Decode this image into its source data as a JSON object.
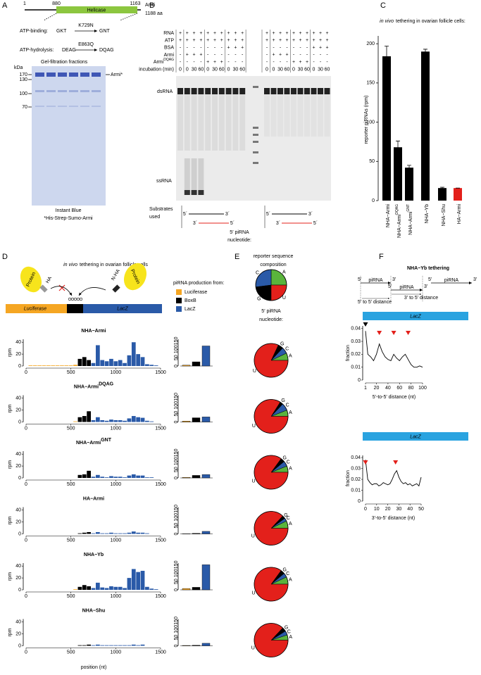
{
  "panel_a": {
    "label": "A",
    "start": "1",
    "helicase_start": "880",
    "helicase_end": "1163",
    "domain": "Helicase",
    "protein": "Armi",
    "length": "1188 aa",
    "mutations": [
      {
        "site": "ATP-binding:",
        "wt": "GKT",
        "change": "K729N",
        "mut": "GNT"
      },
      {
        "site": "ATP-hydrolysis:",
        "wt": "DEAG",
        "change": "E863Q",
        "mut": "DQAG"
      }
    ],
    "gel_title": "Gel-filtration fractions",
    "kda": "kDa",
    "markers": [
      "170",
      "130",
      "100",
      "70"
    ],
    "band": "Armi*",
    "stain": "Instant Blue",
    "construct": "*His-Strep-Sumo-Armi"
  },
  "panel_b": {
    "label": "B",
    "rows": [
      {
        "name": "RNA",
        "left": [
          "+",
          "+",
          "+",
          "+",
          "+",
          "+",
          "+",
          "+",
          "+",
          "+"
        ],
        "right": [
          "+",
          "+",
          "+",
          "+",
          "+",
          "+",
          "+",
          "+",
          "+",
          "+"
        ]
      },
      {
        "name": "ATP",
        "left": [
          "+",
          "+",
          "+",
          "+",
          "+",
          "+",
          "+",
          "+",
          "+",
          "+"
        ],
        "right": [
          "+",
          "+",
          "+",
          "+",
          "+",
          "+",
          "+",
          "+",
          "+",
          "+"
        ]
      },
      {
        "name": "BSA",
        "left": [
          "-",
          "-",
          "-",
          "-",
          "-",
          "-",
          "-",
          "+",
          "+",
          "+"
        ],
        "right": [
          "-",
          "-",
          "-",
          "-",
          "-",
          "-",
          "-",
          "+",
          "+",
          "+"
        ]
      },
      {
        "name": "Armi",
        "left": [
          "-",
          "+",
          "+",
          "+",
          "-",
          "-",
          "-",
          "-",
          "-",
          "-"
        ],
        "right": [
          "-",
          "+",
          "+",
          "+",
          "-",
          "-",
          "-",
          "-",
          "-",
          "-"
        ]
      },
      {
        "name": "Armi",
        "sup": "DQAG",
        "left": [
          "-",
          "-",
          "-",
          "-",
          "+",
          "+",
          "+",
          "-",
          "-",
          "-"
        ],
        "right": [
          "-",
          "-",
          "-",
          "-",
          "+",
          "+",
          "+",
          "-",
          "-",
          "-"
        ]
      },
      {
        "name": "incubation (min)",
        "left": [
          "0",
          "0",
          "30",
          "60",
          "0",
          "30",
          "60",
          "0",
          "30",
          "60"
        ],
        "right": [
          "0",
          "0",
          "30",
          "60",
          "0",
          "30",
          "60",
          "0",
          "30",
          "60"
        ]
      }
    ],
    "dsrna": "dsRNA",
    "ssrna": "ssRNA",
    "substrates": [
      "Substrates",
      "used"
    ],
    "end5": "5´",
    "end3": "3´",
    "nucleotide": [
      "5′ piRNA",
      "nucleotide:"
    ]
  },
  "panel_c": {
    "label": "C",
    "title_italic": "in vivo",
    "title": "tethering in ovarian follicle cells:",
    "ylabel": "reporter piRNAs (rpm)",
    "ylim": [
      0,
      210
    ],
    "yticks": [
      0,
      50,
      100,
      150,
      200
    ],
    "bars": [
      {
        "name": "NHA−Armi",
        "value": 184,
        "error": 13,
        "color": "#000000"
      },
      {
        "name": "NHA−Armi",
        "sup": "DQAG",
        "value": 68,
        "error": 8,
        "color": "#000000"
      },
      {
        "name": "NHA−Armi",
        "sup": "GNT",
        "value": 42,
        "error": 3,
        "color": "#000000"
      },
      {
        "name": "NHA−Yb",
        "value": 190,
        "error": 3,
        "color": "#000000"
      },
      {
        "name": "NHA−Shu",
        "value": 16,
        "error": 1,
        "color": "#000000"
      },
      {
        "name": "HA−Armi",
        "value": 16,
        "error": 0,
        "color": "#e3201b"
      }
    ]
  },
  "panel_d": {
    "label": "D",
    "title_italic": "in vivo",
    "title": "tethering in ovarian follicle cells",
    "construct": {
      "protein": "Protein",
      "ha": "HA",
      "nha": "N-HA",
      "luciferase": "Luciferase",
      "boxb": "BoxB",
      "lacz": "LacZ"
    },
    "legend_title": "piRNA production from:",
    "sources": [
      {
        "name": "Luciferase",
        "color": "#f5a623",
        "from": 0,
        "to": 575
      },
      {
        "name": "BoxB",
        "color": "#000000",
        "from": 575,
        "to": 750
      },
      {
        "name": "LacZ",
        "color": "#2a5aa8",
        "from": 750,
        "to": 1500
      }
    ],
    "ylabel": "rpm",
    "xlabel": "position (nt)",
    "xlim": [
      0,
      1500
    ],
    "xticks": [
      0,
      500,
      1000,
      1500
    ],
    "ylim": [
      0,
      45
    ],
    "yticks": [
      0,
      20,
      40
    ],
    "bar_ylim": [
      0,
      160
    ],
    "bar_yticks": [
      0,
      50,
      100,
      150
    ],
    "x": [
      0,
      50,
      100,
      150,
      200,
      250,
      300,
      350,
      400,
      450,
      500,
      550,
      600,
      650,
      700,
      750,
      800,
      850,
      900,
      950,
      1000,
      1050,
      1100,
      1150,
      1200,
      1250,
      1300,
      1350,
      1400,
      1450,
      1500
    ],
    "tracks": [
      {
        "name": "NHA−Armi",
        "coverage": [
          0,
          1,
          1,
          1,
          1,
          1,
          1,
          1,
          1,
          1,
          1,
          2,
          12,
          15,
          10,
          5,
          35,
          10,
          8,
          12,
          8,
          10,
          5,
          18,
          40,
          20,
          15,
          3,
          2,
          1,
          0
        ],
        "production": [
          5,
          25,
          120
        ]
      },
      {
        "name": "NHA−Armi",
        "sup": "DQAG",
        "coverage": [
          0,
          0,
          0,
          0,
          0,
          0,
          0,
          0,
          0,
          0,
          0,
          1,
          8,
          10,
          18,
          3,
          8,
          3,
          2,
          4,
          3,
          3,
          2,
          6,
          10,
          8,
          7,
          2,
          1,
          0,
          0
        ],
        "production": [
          5,
          25,
          30
        ]
      },
      {
        "name": "NHA−Armi",
        "sup": "GNT",
        "coverage": [
          0,
          0,
          0,
          0,
          0,
          0,
          0,
          0,
          0,
          0,
          0,
          0,
          5,
          6,
          12,
          2,
          5,
          2,
          1,
          3,
          2,
          2,
          1,
          4,
          6,
          4,
          4,
          1,
          1,
          0,
          0
        ],
        "production": [
          3,
          15,
          20
        ]
      },
      {
        "name": "HA−Armi",
        "coverage": [
          0,
          0,
          0,
          0,
          0,
          0,
          0,
          0,
          0,
          0,
          0,
          0,
          1,
          2,
          3,
          1,
          3,
          1,
          1,
          2,
          1,
          1,
          1,
          2,
          4,
          2,
          2,
          1,
          0,
          0,
          0
        ],
        "production": [
          1,
          3,
          15
        ]
      },
      {
        "name": "NHA−Yb",
        "coverage": [
          0,
          0,
          0,
          0,
          0,
          0,
          0,
          0,
          0,
          0,
          0,
          1,
          5,
          8,
          6,
          3,
          12,
          4,
          3,
          6,
          5,
          5,
          3,
          20,
          35,
          30,
          32,
          5,
          2,
          1,
          0
        ],
        "production": [
          8,
          15,
          150
        ]
      },
      {
        "name": "NHA−Shu",
        "coverage": [
          0,
          0,
          0,
          0,
          0,
          0,
          0,
          0,
          0,
          0,
          0,
          0,
          1,
          1,
          2,
          1,
          2,
          1,
          1,
          1,
          1,
          1,
          1,
          1,
          2,
          1,
          2,
          0,
          0,
          0,
          0
        ],
        "production": [
          2,
          3,
          15
        ]
      }
    ]
  },
  "panel_e": {
    "label": "E",
    "title": [
      "reporter sequence",
      "composition"
    ],
    "subtitle": [
      "5′ piRNA",
      "nucleotide:"
    ],
    "nucleotides": [
      "A",
      "C",
      "G",
      "U"
    ],
    "colors": [
      "#5ab43c",
      "#2a5aa8",
      "#000000",
      "#e3201b"
    ],
    "composition": [
      25,
      27,
      23,
      25
    ],
    "pies": [
      [
        7,
        6,
        5,
        82
      ],
      [
        6,
        7,
        3,
        84
      ],
      [
        6,
        5,
        4,
        85
      ],
      [
        7,
        3,
        3,
        87
      ],
      [
        7,
        4,
        4,
        85
      ],
      [
        5,
        4,
        4,
        87
      ]
    ]
  },
  "panel_f": {
    "label": "F",
    "title": "NHA−Yb tethering",
    "diagram": {
      "end5": "5'",
      "end3": "3'",
      "pirna": "piRNA",
      "d55": "5' to 5' distance",
      "d35": "3' to 5' distance"
    },
    "lacz": "LacZ",
    "charts": [
      {
        "type": "line",
        "x": [
          1,
          5,
          10,
          15,
          20,
          25,
          30,
          35,
          40,
          45,
          50,
          55,
          60,
          65,
          70,
          75,
          80,
          85,
          90,
          95,
          100
        ],
        "values": [
          0.038,
          0.02,
          0.018,
          0.015,
          0.02,
          0.028,
          0.022,
          0.018,
          0.016,
          0.015,
          0.02,
          0.017,
          0.015,
          0.018,
          0.02,
          0.016,
          0.012,
          0.01,
          0.01,
          0.011,
          0.01
        ],
        "xlim": [
          1,
          100
        ],
        "xticks": [
          1,
          20,
          40,
          60,
          80,
          100
        ],
        "ylim": [
          0,
          0.042
        ],
        "yticks": [
          0,
          0.01,
          0.02,
          0.03,
          0.04
        ],
        "xlabel": "5'-to-5' distance (nt)",
        "ylabel": "fraction",
        "markers": [
          {
            "x": 1,
            "color": "#000000"
          },
          {
            "x": 25,
            "color": "#e3201b"
          },
          {
            "x": 50,
            "color": "#e3201b"
          },
          {
            "x": 75,
            "color": "#e3201b"
          }
        ]
      },
      {
        "type": "line",
        "x": [
          0,
          2,
          4,
          6,
          8,
          10,
          12,
          14,
          16,
          18,
          20,
          22,
          24,
          26,
          28,
          30,
          32,
          34,
          36,
          38,
          40,
          42,
          44,
          46,
          48,
          50
        ],
        "values": [
          0.038,
          0.02,
          0.017,
          0.015,
          0.016,
          0.016,
          0.014,
          0.015,
          0.017,
          0.016,
          0.015,
          0.016,
          0.02,
          0.025,
          0.028,
          0.022,
          0.018,
          0.016,
          0.017,
          0.015,
          0.016,
          0.014,
          0.015,
          0.016,
          0.014,
          0.022
        ],
        "xlim": [
          0,
          50
        ],
        "xticks": [
          0,
          10,
          20,
          30,
          40,
          50
        ],
        "ylim": [
          0,
          0.042
        ],
        "yticks": [
          0,
          0.01,
          0.02,
          0.03,
          0.04
        ],
        "xlabel": "3'-to-5' distance (nt)",
        "ylabel": "fraction",
        "markers": [
          {
            "x": 0,
            "color": "#e3201b"
          },
          {
            "x": 27,
            "color": "#e3201b"
          }
        ]
      }
    ]
  }
}
